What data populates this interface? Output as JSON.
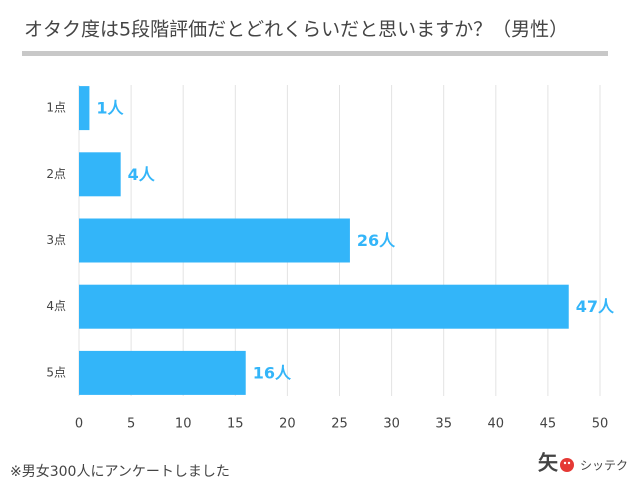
{
  "chart_data": {
    "type": "bar",
    "orientation": "horizontal",
    "title": "オタク度は5段階評価だとどれくらいだと思いますか？（男性）",
    "categories": [
      "1点",
      "2点",
      "3点",
      "4点",
      "5点"
    ],
    "values": [
      1,
      4,
      26,
      47,
      16
    ],
    "value_labels": [
      "1人",
      "4人",
      "26人",
      "47人",
      "16人"
    ],
    "color": "#33b5f9",
    "xlim": [
      0,
      50
    ],
    "xticks": [
      0,
      5,
      10,
      15,
      20,
      25,
      30,
      35,
      40,
      45,
      50
    ],
    "grid": true
  },
  "footnote": "※男女300人にアンケートしました",
  "logo": {
    "mark": "矢",
    "text": "シッテク"
  }
}
